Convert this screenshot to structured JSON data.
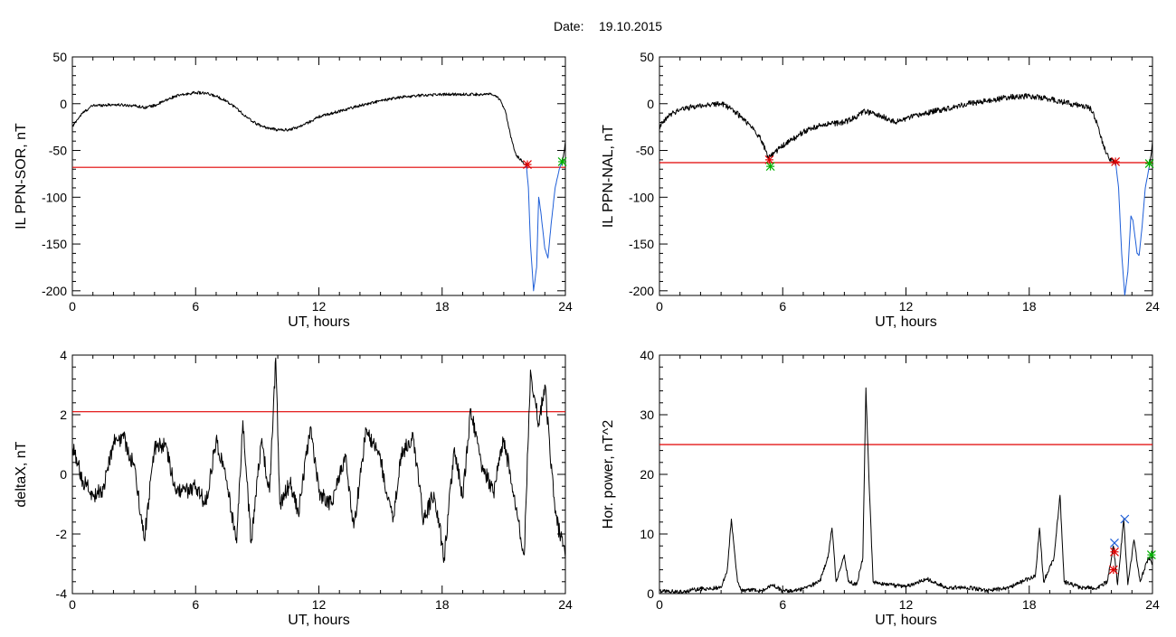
{
  "header": {
    "date_label": "Date:",
    "date_value": "19.10.2015"
  },
  "colors": {
    "data_line": "#000000",
    "threshold_line": "#e00000",
    "highlight_line": "#1f5fd8",
    "start_marker": "#e00000",
    "end_marker": "#00b000",
    "peak_marker": "#1f5fd8"
  },
  "chart_data": [
    {
      "id": "il-sor",
      "type": "line",
      "title": "",
      "xlabel": "UT, hours",
      "ylabel": "IL PPN-SOR, nT",
      "xlim": [
        0,
        24
      ],
      "ylim": [
        -205,
        50
      ],
      "xticks": [
        0,
        6,
        12,
        18,
        24
      ],
      "yticks": [
        -200,
        -150,
        -100,
        -50,
        0,
        50
      ],
      "threshold": -68,
      "series": [
        {
          "name": "",
          "color": "data_line",
          "noise": 1.5,
          "points": [
            [
              0,
              -25
            ],
            [
              0.2,
              -18
            ],
            [
              0.5,
              -10
            ],
            [
              0.8,
              -5
            ],
            [
              1,
              -2
            ],
            [
              2,
              -1
            ],
            [
              3,
              -2
            ],
            [
              3.5,
              -4
            ],
            [
              4,
              -2
            ],
            [
              4.5,
              3
            ],
            [
              5,
              8
            ],
            [
              5.5,
              10
            ],
            [
              6,
              12
            ],
            [
              6.5,
              11
            ],
            [
              7,
              8
            ],
            [
              7.5,
              3
            ],
            [
              8,
              -5
            ],
            [
              8.5,
              -15
            ],
            [
              9,
              -22
            ],
            [
              9.5,
              -26
            ],
            [
              10,
              -28
            ],
            [
              10.5,
              -28
            ],
            [
              11,
              -25
            ],
            [
              11.5,
              -20
            ],
            [
              12,
              -14
            ],
            [
              13,
              -8
            ],
            [
              14,
              -2
            ],
            [
              15,
              3
            ],
            [
              16,
              7
            ],
            [
              17,
              9
            ],
            [
              18,
              10
            ],
            [
              19,
              10
            ],
            [
              20,
              10
            ],
            [
              20.4,
              10
            ],
            [
              20.8,
              5
            ],
            [
              21.1,
              -10
            ],
            [
              21.4,
              -40
            ],
            [
              21.6,
              -55
            ],
            [
              21.9,
              -62
            ],
            [
              22.1,
              -66
            ]
          ]
        },
        {
          "name": "",
          "color": "highlight_line",
          "noise": 0.6,
          "points": [
            [
              22.1,
              -66
            ],
            [
              22.2,
              -90
            ],
            [
              22.3,
              -150
            ],
            [
              22.45,
              -200
            ],
            [
              22.6,
              -175
            ],
            [
              22.7,
              -100
            ],
            [
              22.8,
              -115
            ],
            [
              23.0,
              -155
            ],
            [
              23.15,
              -165
            ],
            [
              23.3,
              -130
            ],
            [
              23.5,
              -90
            ],
            [
              23.7,
              -70
            ],
            [
              23.85,
              -62
            ]
          ]
        },
        {
          "name": "",
          "color": "data_line",
          "noise": 0.8,
          "points": [
            [
              23.85,
              -62
            ],
            [
              23.95,
              -50
            ],
            [
              24,
              -40
            ]
          ]
        }
      ],
      "markers": [
        {
          "x": 22.15,
          "y": -65,
          "color": "start_marker",
          "symbol": "star"
        },
        {
          "x": 23.85,
          "y": -62,
          "color": "end_marker",
          "symbol": "star"
        }
      ]
    },
    {
      "id": "il-nal",
      "type": "line",
      "title": "",
      "xlabel": "UT, hours",
      "ylabel": "IL PPN-NAL, nT",
      "xlim": [
        0,
        24
      ],
      "ylim": [
        -205,
        50
      ],
      "xticks": [
        0,
        6,
        12,
        18,
        24
      ],
      "yticks": [
        -200,
        -150,
        -100,
        -50,
        0,
        50
      ],
      "threshold": -63,
      "series": [
        {
          "name": "",
          "color": "data_line",
          "noise": 3,
          "points": [
            [
              0,
              -25
            ],
            [
              0.5,
              -12
            ],
            [
              1,
              -6
            ],
            [
              2,
              -2
            ],
            [
              3,
              0
            ],
            [
              3.5,
              -5
            ],
            [
              4,
              -15
            ],
            [
              4.5,
              -25
            ],
            [
              5,
              -40
            ],
            [
              5.3,
              -58
            ],
            [
              5.6,
              -52
            ],
            [
              6,
              -45
            ],
            [
              6.5,
              -38
            ],
            [
              7,
              -30
            ],
            [
              8,
              -22
            ],
            [
              9,
              -20
            ],
            [
              9.5,
              -15
            ],
            [
              10,
              -8
            ],
            [
              11,
              -15
            ],
            [
              11.5,
              -20
            ],
            [
              12,
              -16
            ],
            [
              13,
              -10
            ],
            [
              14,
              -5
            ],
            [
              15,
              0
            ],
            [
              16,
              3
            ],
            [
              17,
              7
            ],
            [
              18,
              8
            ],
            [
              19,
              5
            ],
            [
              20,
              0
            ],
            [
              20.5,
              -2
            ],
            [
              21,
              -5
            ],
            [
              21.3,
              -20
            ],
            [
              21.6,
              -45
            ],
            [
              21.9,
              -60
            ],
            [
              22.2,
              -62
            ]
          ]
        },
        {
          "name": "",
          "color": "highlight_line",
          "noise": 0.6,
          "points": [
            [
              22.2,
              -62
            ],
            [
              22.35,
              -90
            ],
            [
              22.5,
              -160
            ],
            [
              22.65,
              -205
            ],
            [
              22.8,
              -180
            ],
            [
              22.95,
              -120
            ],
            [
              23.05,
              -125
            ],
            [
              23.25,
              -160
            ],
            [
              23.35,
              -162
            ],
            [
              23.5,
              -130
            ],
            [
              23.65,
              -90
            ],
            [
              23.85,
              -66
            ]
          ]
        },
        {
          "name": "",
          "color": "data_line",
          "noise": 0.8,
          "points": [
            [
              23.85,
              -66
            ],
            [
              23.95,
              -52
            ],
            [
              24,
              -40
            ]
          ]
        }
      ],
      "markers": [
        {
          "x": 5.35,
          "y": -60,
          "color": "start_marker",
          "symbol": "star"
        },
        {
          "x": 5.4,
          "y": -67,
          "color": "end_marker",
          "symbol": "star"
        },
        {
          "x": 22.2,
          "y": -62,
          "color": "start_marker",
          "symbol": "star"
        },
        {
          "x": 23.85,
          "y": -64,
          "color": "end_marker",
          "symbol": "star"
        }
      ]
    },
    {
      "id": "deltax",
      "type": "line",
      "title": "",
      "xlabel": "UT, hours",
      "ylabel": "deltaX, nT",
      "xlim": [
        0,
        24
      ],
      "ylim": [
        -4,
        4
      ],
      "xticks": [
        0,
        6,
        12,
        18,
        24
      ],
      "yticks": [
        -4,
        -2,
        0,
        2,
        4
      ],
      "threshold": 2.1,
      "series": [
        {
          "name": "",
          "color": "data_line",
          "noise": 0.28,
          "points": [
            [
              0,
              0.9
            ],
            [
              0.5,
              -0.2
            ],
            [
              1,
              -0.7
            ],
            [
              1.5,
              -0.5
            ],
            [
              2,
              1.1
            ],
            [
              2.5,
              1.2
            ],
            [
              3,
              0.3
            ],
            [
              3.5,
              -2.2
            ],
            [
              4,
              0.9
            ],
            [
              4.5,
              1.0
            ],
            [
              5,
              -0.5
            ],
            [
              5.5,
              -0.6
            ],
            [
              6,
              -0.4
            ],
            [
              6.5,
              -1.0
            ],
            [
              7,
              1.2
            ],
            [
              7.5,
              -0.2
            ],
            [
              8,
              -2.3
            ],
            [
              8.3,
              1.8
            ],
            [
              8.7,
              -2.3
            ],
            [
              9.2,
              1.1
            ],
            [
              9.6,
              -0.6
            ],
            [
              9.9,
              3.9
            ],
            [
              10.1,
              -1.0
            ],
            [
              10.6,
              -0.3
            ],
            [
              11,
              -1.3
            ],
            [
              11.6,
              1.6
            ],
            [
              12,
              -0.6
            ],
            [
              12.6,
              -1.0
            ],
            [
              13.3,
              0.6
            ],
            [
              13.7,
              -1.8
            ],
            [
              14.3,
              1.5
            ],
            [
              15,
              0.5
            ],
            [
              15.6,
              -1.6
            ],
            [
              16,
              0.7
            ],
            [
              16.6,
              1.2
            ],
            [
              17.1,
              -1.6
            ],
            [
              17.6,
              -0.6
            ],
            [
              18.1,
              -2.8
            ],
            [
              18.6,
              0.9
            ],
            [
              19,
              -0.8
            ],
            [
              19.4,
              2.2
            ],
            [
              19.9,
              0.4
            ],
            [
              20.5,
              -0.6
            ],
            [
              21,
              1.2
            ],
            [
              21.5,
              -0.7
            ],
            [
              22,
              -2.7
            ],
            [
              22.3,
              3.5
            ],
            [
              22.7,
              1.7
            ],
            [
              23,
              3.0
            ],
            [
              23.5,
              -1.3
            ],
            [
              24,
              -2.8
            ]
          ]
        }
      ],
      "markers": []
    },
    {
      "id": "hor-power",
      "type": "line",
      "title": "",
      "xlabel": "UT, hours",
      "ylabel": "Hor. power, nT^2",
      "xlim": [
        0,
        24
      ],
      "ylim": [
        0,
        40
      ],
      "xticks": [
        0,
        6,
        12,
        18,
        24
      ],
      "yticks": [
        0,
        10,
        20,
        30,
        40
      ],
      "threshold": 25,
      "series": [
        {
          "name": "",
          "color": "data_line",
          "noise": 0.35,
          "points": [
            [
              0,
              0.5
            ],
            [
              1,
              0.3
            ],
            [
              2,
              0.8
            ],
            [
              3,
              1.0
            ],
            [
              3.3,
              4
            ],
            [
              3.5,
              12.5
            ],
            [
              3.8,
              2
            ],
            [
              4,
              0.6
            ],
            [
              5,
              0.5
            ],
            [
              5.5,
              1.5
            ],
            [
              6,
              0.4
            ],
            [
              7,
              0.8
            ],
            [
              7.8,
              2
            ],
            [
              8.2,
              6
            ],
            [
              8.4,
              11
            ],
            [
              8.6,
              2
            ],
            [
              9,
              6.5
            ],
            [
              9.2,
              2
            ],
            [
              9.6,
              1.5
            ],
            [
              9.9,
              6
            ],
            [
              10.05,
              34.5
            ],
            [
              10.2,
              19
            ],
            [
              10.4,
              2
            ],
            [
              11,
              1.5
            ],
            [
              12,
              1.2
            ],
            [
              13,
              2.5
            ],
            [
              14,
              1.0
            ],
            [
              15,
              1.0
            ],
            [
              16,
              0.5
            ],
            [
              17,
              1.0
            ],
            [
              18.3,
              3
            ],
            [
              18.5,
              11
            ],
            [
              18.7,
              2
            ],
            [
              19.2,
              6
            ],
            [
              19.5,
              16.5
            ],
            [
              19.7,
              2
            ],
            [
              20.5,
              1.0
            ],
            [
              21.3,
              1.0
            ],
            [
              21.8,
              2
            ],
            [
              22.1,
              8
            ],
            [
              22.3,
              1.5
            ],
            [
              22.6,
              12.5
            ],
            [
              22.8,
              1.5
            ],
            [
              23.1,
              9
            ],
            [
              23.4,
              2
            ],
            [
              23.8,
              6
            ],
            [
              24,
              5
            ]
          ]
        }
      ],
      "markers": [
        {
          "x": 22.15,
          "y": 8.5,
          "color": "peak_marker",
          "symbol": "cross"
        },
        {
          "x": 22.65,
          "y": 12.5,
          "color": "peak_marker",
          "symbol": "cross"
        },
        {
          "x": 22.15,
          "y": 7,
          "color": "start_marker",
          "symbol": "star"
        },
        {
          "x": 22.1,
          "y": 4,
          "color": "start_marker",
          "symbol": "star"
        },
        {
          "x": 23.95,
          "y": 6.5,
          "color": "end_marker",
          "symbol": "star"
        }
      ]
    }
  ]
}
